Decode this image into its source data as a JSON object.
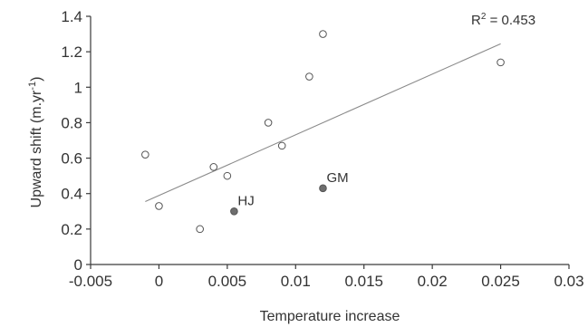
{
  "chart_data": {
    "type": "scatter",
    "title": "",
    "xlabel": "Temperature increase",
    "ylabel_main": "Upward shift (m.yr",
    "ylabel_sup": "-1",
    "ylabel_close": ")",
    "xlim": [
      -0.005,
      0.03
    ],
    "ylim": [
      0,
      1.4
    ],
    "x_ticks": [
      -0.005,
      0,
      0.005,
      0.01,
      0.015,
      0.02,
      0.025,
      0.03
    ],
    "x_tick_labels": [
      "-0.005",
      "0",
      "0.005",
      "0.01",
      "0.015",
      "0.02",
      "0.025",
      "0.03"
    ],
    "y_ticks": [
      0,
      0.2,
      0.4,
      0.6,
      0.8,
      1,
      1.2,
      1.4
    ],
    "y_tick_labels": [
      "0",
      "0.2",
      "0.4",
      "0.6",
      "0.8",
      "1",
      "1.2",
      "1.4"
    ],
    "grid": false,
    "points": [
      {
        "x": -0.001,
        "y": 0.62
      },
      {
        "x": 0.0,
        "y": 0.33
      },
      {
        "x": 0.003,
        "y": 0.2
      },
      {
        "x": 0.004,
        "y": 0.55
      },
      {
        "x": 0.005,
        "y": 0.5
      },
      {
        "x": 0.008,
        "y": 0.8
      },
      {
        "x": 0.009,
        "y": 0.67
      },
      {
        "x": 0.011,
        "y": 1.06
      },
      {
        "x": 0.012,
        "y": 1.3
      },
      {
        "x": 0.025,
        "y": 1.14
      }
    ],
    "highlighted_points": [
      {
        "x": 0.0055,
        "y": 0.3,
        "label": "HJ"
      },
      {
        "x": 0.012,
        "y": 0.43,
        "label": "GM"
      }
    ],
    "trendline": {
      "x": [
        -0.001,
        0.025
      ],
      "y": [
        0.355,
        1.245
      ]
    },
    "annotation": {
      "prefix": "R",
      "sup": "2",
      "suffix": " = 0.453"
    },
    "colors": {
      "open_marker_fill": "#ffffff",
      "marker_stroke": "#555555",
      "filled_marker": "#6e6e6e",
      "trend": "#8a8a8a"
    }
  }
}
